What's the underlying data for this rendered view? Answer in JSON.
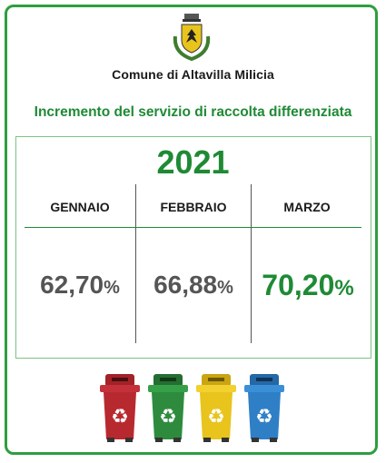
{
  "header": {
    "organization": "Comune di Altavilla Milicia"
  },
  "title": "Incremento del servizio di raccolta differenziata",
  "year": "2021",
  "months": [
    {
      "label": "GENNAIO",
      "value": "62,70",
      "unit": "%"
    },
    {
      "label": "FEBBRAIO",
      "value": "66,88",
      "unit": "%"
    },
    {
      "label": "MARZO",
      "value": "70,20",
      "unit": "%"
    }
  ],
  "colors": {
    "accent": "#1f8a35",
    "border": "#2e9e3f",
    "value_gray": "#555555"
  },
  "bins": [
    {
      "name": "red-recycle-bin",
      "color": "#b8292f"
    },
    {
      "name": "green-recycle-bin",
      "color": "#2e8b3e"
    },
    {
      "name": "yellow-recycle-bin",
      "color": "#e8c41c"
    },
    {
      "name": "blue-recycle-bin",
      "color": "#2f7fc6"
    }
  ]
}
